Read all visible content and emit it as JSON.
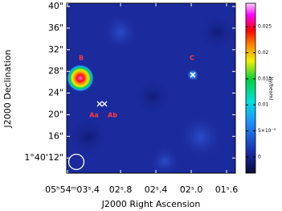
{
  "chart_data": {
    "type": "image",
    "xlabel": "J2000 Right Ascension",
    "ylabel": "J2000 Declination",
    "xlim": [
      3.41,
      1.5
    ],
    "xticks": [
      {
        "value": 3.4,
        "label": "05ʰ54ᵐ03ˢ.4"
      },
      {
        "value": 2.8,
        "label": "02ˢ.8"
      },
      {
        "value": 2.4,
        "label": "02ˢ.4"
      },
      {
        "value": 2.0,
        "label": "02ˢ.0"
      },
      {
        "value": 1.6,
        "label": "01ˢ.6"
      }
    ],
    "ylim": [
      9.2,
      40.6
    ],
    "yticks": [
      {
        "value": 12,
        "label": "1°40'12\""
      },
      {
        "value": 16,
        "label": "16\""
      },
      {
        "value": 20,
        "label": "20\""
      },
      {
        "value": 24,
        "label": "24\""
      },
      {
        "value": 28,
        "label": "28\""
      },
      {
        "value": 32,
        "label": "32\""
      },
      {
        "value": 36,
        "label": "36\""
      },
      {
        "value": 40,
        "label": "40\""
      }
    ],
    "colorbar": {
      "label": "(Jy/beam)",
      "lim": [
        -0.0031,
        0.0295
      ],
      "ticks": [
        0,
        {
          "value": 0.005,
          "label": "5×10⁻³"
        },
        0.01,
        0.015,
        0.02,
        0.025
      ]
    },
    "annotations": [
      "B",
      "C",
      "Aa",
      "Ab"
    ]
  }
}
